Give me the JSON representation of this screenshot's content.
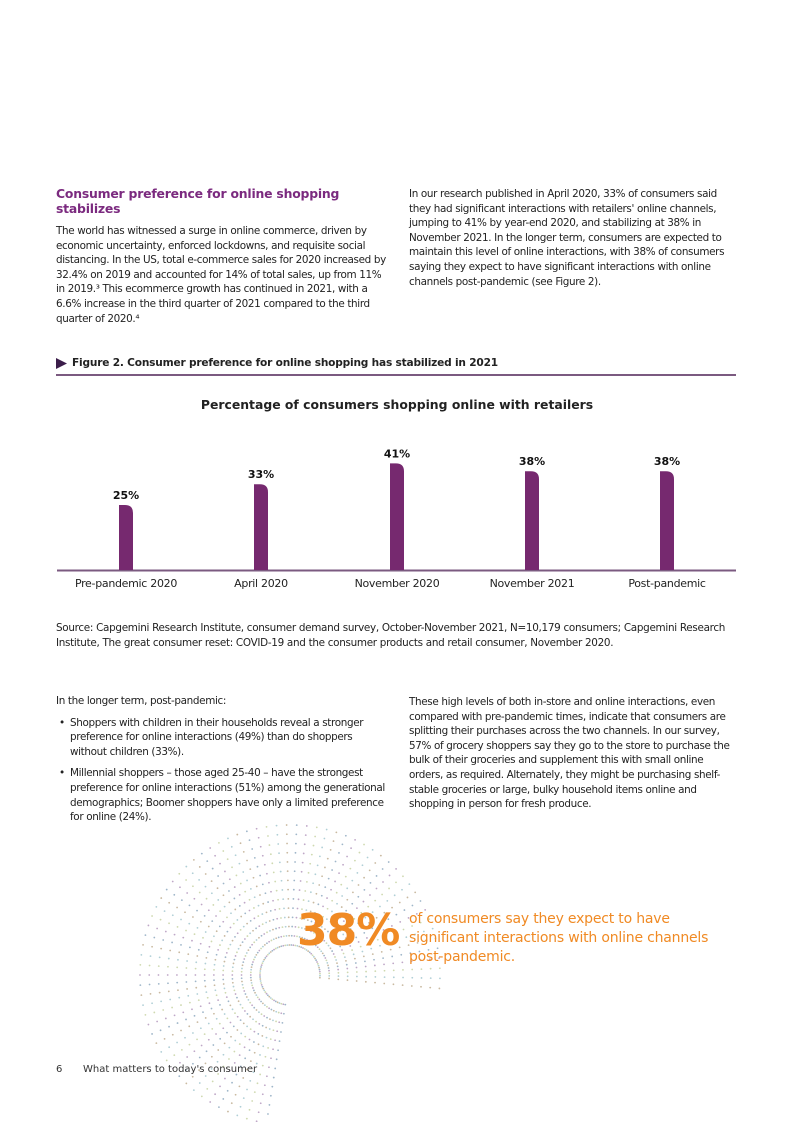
{
  "left_column": {
    "heading": "Consumer preference for online shopping stabilizes",
    "paragraph": "The world has witnessed a surge in online commerce, driven by economic uncertainty, enforced lockdowns, and requisite social distancing. In the US, total e-commerce sales for 2020 increased by 32.4% on 2019 and accounted for 14% of total sales, up from 11% in 2019.³ This ecommerce growth has continued in 2021, with a 6.6% increase in the third quarter of 2021 compared to the third quarter of 2020.⁴"
  },
  "right_column": {
    "paragraph": "In our research published in April 2020, 33% of consumers said they had significant interactions with retailers' online channels, jumping to 41% by year-end 2020, and stabilizing at 38% in November 2021. In the longer term, consumers are expected to maintain this level of online interactions, with 38% of consumers saying they expect to have significant interactions with online channels post-pandemic (see Figure 2)."
  },
  "figure": {
    "caption": "Figure 2. Consumer preference for online shopping has stabilized in 2021",
    "source": "Source: Capgemini Research Institute, consumer demand survey, October-November 2021, N=10,179 consumers; Capgemini Research Institute, The great consumer reset: COVID-19 and the consumer products and retail consumer, November 2020."
  },
  "chart_data": {
    "type": "bar",
    "title": "Percentage of consumers shopping online with retailers",
    "categories": [
      "Pre-pandemic 2020",
      "April 2020",
      "November 2020",
      "November 2021",
      "Post-pandemic"
    ],
    "values": [
      25,
      33,
      41,
      38,
      38
    ],
    "labels": [
      "25%",
      "33%",
      "41%",
      "38%",
      "38%"
    ],
    "unit": "%",
    "ylim": [
      0,
      50
    ],
    "grid": false,
    "bar_color": "#76296f"
  },
  "lower_left": {
    "intro": "In the longer term, post-pandemic:",
    "bullets": [
      "Shoppers with children in their households reveal a stronger preference for online interactions (49%) than do shoppers without children (33%).",
      "Millennial shoppers – those aged 25-40 – have the strongest preference for online interactions (51%) among the generational demographics; Boomer shoppers have only a limited preference for online (24%)."
    ]
  },
  "lower_right": {
    "paragraph": "These high levels of both in-store and online interactions, even compared with pre-pandemic times, indicate that consumers are splitting their purchases across the two channels. In our survey, 57% of grocery shoppers say they go to the store to purchase the bulk of their groceries and supplement this with small online orders, as required. Alternately, they might be purchasing shelf-stable groceries or large, bulky household items online and shopping in person for fresh produce."
  },
  "callout": {
    "stat": "38%",
    "text": "of consumers say they expect to have significant interactions with online channels post-pandemic.",
    "color": "#f08a24"
  },
  "footer": {
    "page_number": "6",
    "title": "What matters to today's consumer"
  },
  "colors": {
    "accent_purple": "#7b2a7f",
    "accent_orange": "#f08a24"
  }
}
